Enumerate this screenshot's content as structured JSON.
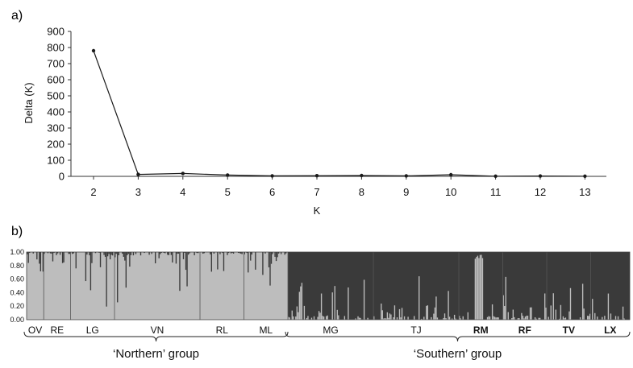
{
  "chart_data": [
    {
      "type": "line",
      "panel": "a)",
      "title": "",
      "xlabel": "K",
      "ylabel": "Delta (K)",
      "x": [
        2,
        3,
        4,
        5,
        6,
        7,
        8,
        9,
        10,
        11,
        12,
        13
      ],
      "y": [
        780,
        12,
        18,
        8,
        3,
        4,
        5,
        3,
        10,
        1,
        2,
        1
      ],
      "xlim": [
        2,
        13
      ],
      "ylim": [
        0,
        900
      ],
      "yticks": [
        0,
        100,
        200,
        300,
        400,
        500,
        600,
        700,
        800,
        900
      ],
      "grid": false,
      "line_color": "#1a1a1a"
    },
    {
      "type": "bar",
      "subtype": "stacked-membership",
      "panel": "b)",
      "title": "",
      "ylim": [
        0,
        1
      ],
      "yticks": [
        "0.00",
        "0.20",
        "0.40",
        "0.60",
        "0.80",
        "1.00"
      ],
      "cluster_colors": {
        "northern": "#bdbdbd",
        "southern": "#3a3a3a"
      },
      "populations": [
        {
          "name": "OV",
          "group": "north",
          "bold": false,
          "n": 14
        },
        {
          "name": "RE",
          "group": "north",
          "bold": false,
          "n": 22
        },
        {
          "name": "LG",
          "group": "north",
          "bold": false,
          "n": 36
        },
        {
          "name": "VN",
          "group": "north",
          "bold": false,
          "n": 70
        },
        {
          "name": "RL",
          "group": "north",
          "bold": false,
          "n": 36
        },
        {
          "name": "ML",
          "group": "north",
          "bold": false,
          "n": 36
        },
        {
          "name": "MG",
          "group": "south",
          "bold": false,
          "n": 70
        },
        {
          "name": "TJ",
          "group": "south",
          "bold": false,
          "n": 70
        },
        {
          "name": "RM",
          "group": "south",
          "bold": true,
          "n": 36
        },
        {
          "name": "RF",
          "group": "south",
          "bold": true,
          "n": 36
        },
        {
          "name": "TV",
          "group": "south",
          "bold": true,
          "n": 36
        },
        {
          "name": "LX",
          "group": "south",
          "bold": true,
          "n": 32
        }
      ],
      "groups": [
        {
          "id": "north",
          "label": "‘Northern’ group"
        },
        {
          "id": "south",
          "label": "‘Southern’ group"
        }
      ]
    }
  ]
}
